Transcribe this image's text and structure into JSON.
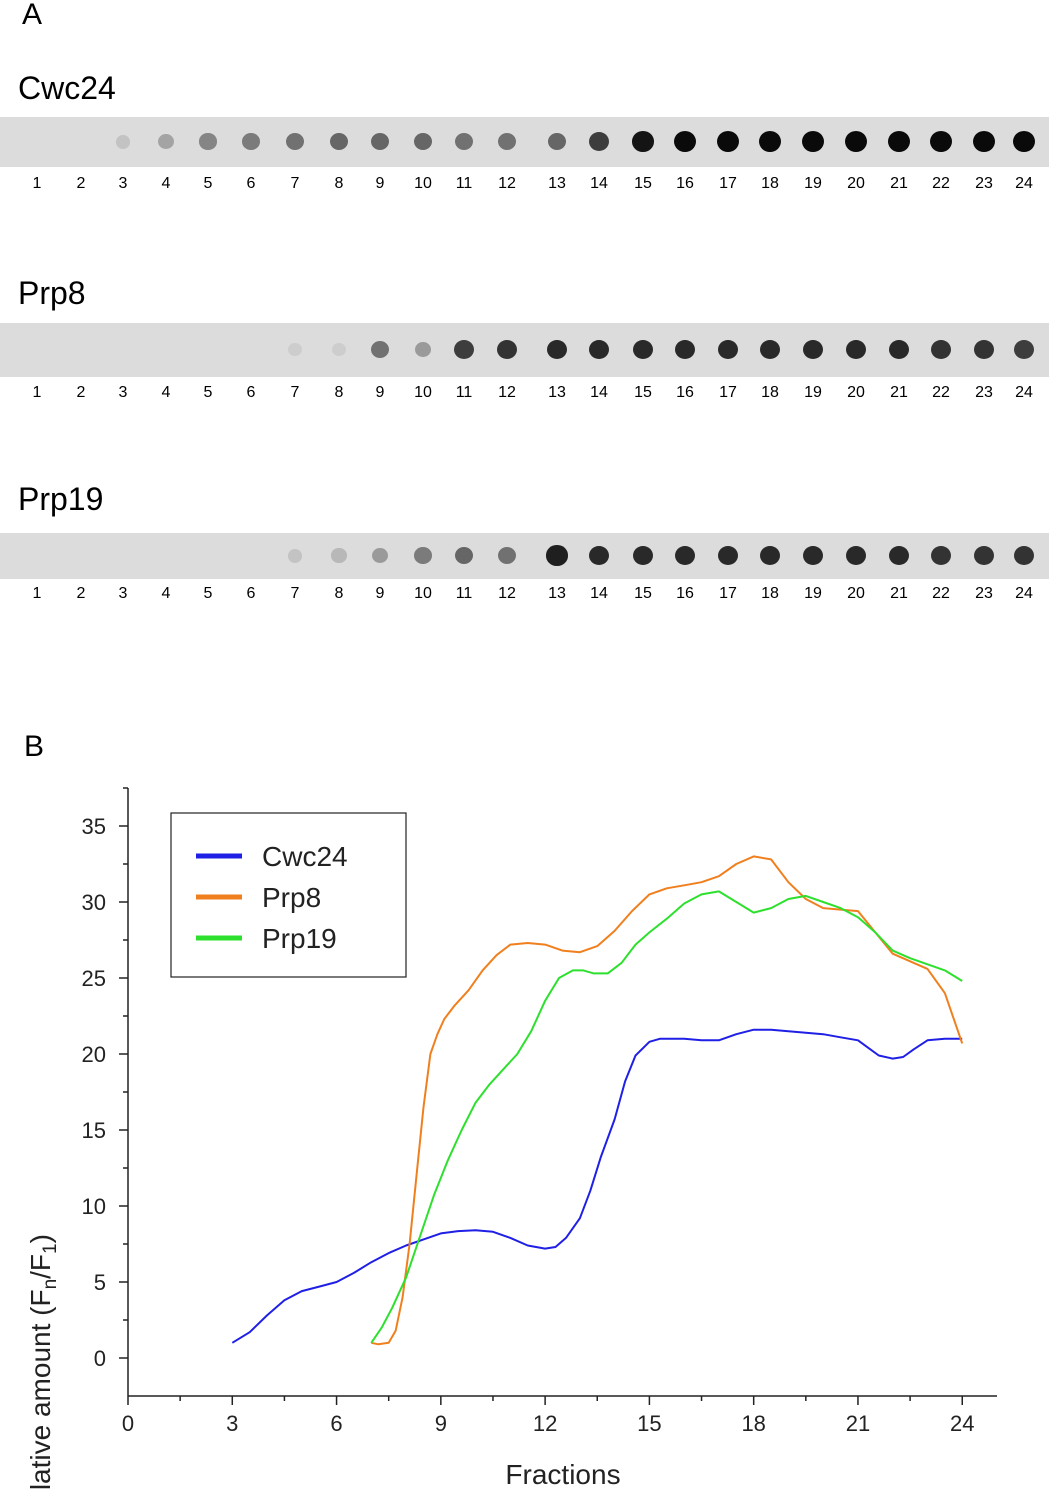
{
  "panel_a": {
    "label": "A",
    "lanes": [
      "1",
      "2",
      "3",
      "4",
      "5",
      "6",
      "7",
      "8",
      "9",
      "10",
      "11",
      "12",
      "13",
      "14",
      "15",
      "16",
      "17",
      "18",
      "19",
      "20",
      "21",
      "22",
      "23",
      "24"
    ],
    "blots": [
      {
        "name": "Cwc24",
        "intensity": [
          0,
          0,
          0.1,
          0.25,
          0.4,
          0.45,
          0.5,
          0.55,
          0.55,
          0.55,
          0.5,
          0.5,
          0.55,
          0.75,
          0.95,
          1,
          1,
          1,
          1,
          1,
          1,
          1,
          1,
          1
        ]
      },
      {
        "name": "Prp8",
        "intensity": [
          0,
          0,
          0,
          0,
          0,
          0,
          0.05,
          0.05,
          0.5,
          0.3,
          0.75,
          0.8,
          0.85,
          0.85,
          0.85,
          0.85,
          0.85,
          0.85,
          0.85,
          0.85,
          0.85,
          0.8,
          0.8,
          0.75
        ]
      },
      {
        "name": "Prp19",
        "intensity": [
          0,
          0,
          0,
          0,
          0,
          0,
          0.1,
          0.15,
          0.3,
          0.45,
          0.55,
          0.5,
          0.9,
          0.85,
          0.85,
          0.85,
          0.85,
          0.85,
          0.85,
          0.85,
          0.85,
          0.8,
          0.8,
          0.8
        ]
      }
    ]
  },
  "panel_b": {
    "label": "B"
  },
  "chart_data": {
    "type": "line",
    "title": "",
    "xlabel": "Fractions",
    "ylabel": "Relative amount (F",
    "ylabel_sub_n": "n",
    "ylabel_mid": "/F",
    "ylabel_sub_1": "1",
    "ylabel_end": ")",
    "xlim": [
      0,
      25
    ],
    "ylim": [
      -2.5,
      37.5
    ],
    "xticks": [
      "0",
      "3",
      "6",
      "9",
      "12",
      "15",
      "18",
      "21",
      "24"
    ],
    "yticks": [
      "0",
      "5",
      "10",
      "15",
      "20",
      "25",
      "30",
      "35"
    ],
    "legend": "top-left",
    "series": [
      {
        "name": "Cwc24",
        "color": "#1f1fe6",
        "x": [
          3,
          3.5,
          4,
          4.5,
          5,
          5.5,
          6,
          6.5,
          7,
          7.5,
          8,
          8.5,
          9,
          9.5,
          10,
          10.5,
          11,
          11.5,
          12,
          12.3,
          12.6,
          13,
          13.3,
          13.6,
          14,
          14.3,
          14.6,
          15,
          15.3,
          15.6,
          16,
          16.5,
          17,
          17.5,
          18,
          18.5,
          19,
          19.5,
          20,
          20.5,
          21,
          21.3,
          21.6,
          22,
          22.3,
          22.6,
          23,
          23.5,
          24
        ],
        "y": [
          1,
          1.7,
          2.8,
          3.8,
          4.4,
          4.7,
          5.0,
          5.6,
          6.3,
          6.9,
          7.4,
          7.8,
          8.2,
          8.35,
          8.4,
          8.3,
          7.9,
          7.4,
          7.2,
          7.3,
          7.9,
          9.2,
          11.0,
          13.2,
          15.7,
          18.2,
          19.9,
          20.8,
          21.0,
          21.0,
          21.0,
          20.9,
          20.9,
          21.3,
          21.6,
          21.6,
          21.5,
          21.4,
          21.3,
          21.1,
          20.9,
          20.4,
          19.9,
          19.7,
          19.8,
          20.3,
          20.9,
          21.0,
          21.0
        ]
      },
      {
        "name": "Prp8",
        "color": "#f07f1e",
        "x": [
          7,
          7.2,
          7.5,
          7.7,
          7.9,
          8.1,
          8.3,
          8.5,
          8.7,
          8.9,
          9.1,
          9.4,
          9.8,
          10.2,
          10.6,
          11,
          11.5,
          12,
          12.5,
          13,
          13.5,
          14,
          14.5,
          15,
          15.5,
          16,
          16.5,
          17,
          17.5,
          18,
          18.5,
          19,
          19.5,
          20,
          20.5,
          21,
          21.5,
          22,
          22.5,
          23,
          23.5,
          24
        ],
        "y": [
          1,
          0.9,
          1.0,
          1.8,
          4.0,
          7.5,
          12.0,
          16.5,
          20.0,
          21.3,
          22.3,
          23.2,
          24.2,
          25.5,
          26.5,
          27.2,
          27.3,
          27.2,
          26.8,
          26.7,
          27.1,
          28.1,
          29.4,
          30.5,
          30.9,
          31.1,
          31.3,
          31.7,
          32.5,
          33.0,
          32.8,
          31.3,
          30.2,
          29.6,
          29.5,
          29.4,
          28.0,
          26.6,
          26.1,
          25.6,
          24.0,
          20.7
        ]
      },
      {
        "name": "Prp19",
        "color": "#2ee02e",
        "x": [
          7,
          7.3,
          7.6,
          8,
          8.4,
          8.8,
          9.2,
          9.6,
          10,
          10.4,
          10.8,
          11.2,
          11.6,
          12,
          12.4,
          12.8,
          13.1,
          13.4,
          13.8,
          14.2,
          14.6,
          15,
          15.5,
          16,
          16.5,
          17,
          17.5,
          18,
          18.5,
          19,
          19.5,
          20,
          20.5,
          21,
          21.5,
          22,
          22.5,
          23,
          23.5,
          24
        ],
        "y": [
          1,
          2.0,
          3.3,
          5.3,
          8.0,
          10.7,
          13.0,
          15.0,
          16.8,
          18.0,
          19.0,
          20.0,
          21.5,
          23.5,
          25.0,
          25.5,
          25.5,
          25.3,
          25.3,
          26.0,
          27.2,
          28.0,
          28.9,
          29.9,
          30.5,
          30.7,
          30.0,
          29.3,
          29.6,
          30.2,
          30.4,
          30.0,
          29.6,
          29.0,
          28.0,
          26.8,
          26.3,
          25.9,
          25.5,
          24.8
        ]
      }
    ]
  }
}
